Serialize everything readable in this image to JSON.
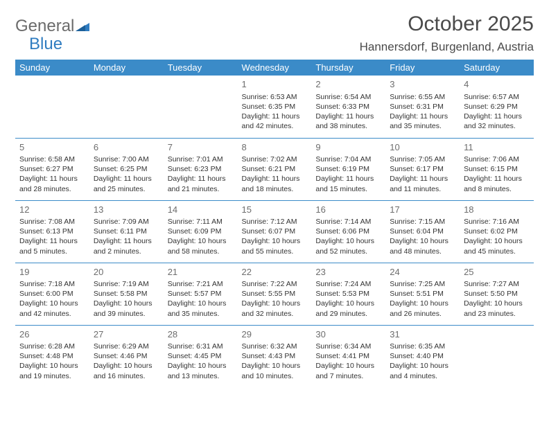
{
  "logo": {
    "text1": "General",
    "text2": "Blue"
  },
  "title": "October 2025",
  "location": "Hannersdorf, Burgenland, Austria",
  "colors": {
    "header_bg": "#3b8bc8",
    "header_text": "#ffffff",
    "border": "#3b8bc8",
    "body_text": "#333333",
    "daynum": "#6d6d6d",
    "logo_gray": "#6b6b6b",
    "logo_blue": "#2f7cc0"
  },
  "day_headers": [
    "Sunday",
    "Monday",
    "Tuesday",
    "Wednesday",
    "Thursday",
    "Friday",
    "Saturday"
  ],
  "weeks": [
    [
      {
        "num": "",
        "lines": []
      },
      {
        "num": "",
        "lines": []
      },
      {
        "num": "",
        "lines": []
      },
      {
        "num": "1",
        "lines": [
          "Sunrise: 6:53 AM",
          "Sunset: 6:35 PM",
          "Daylight: 11 hours and 42 minutes."
        ]
      },
      {
        "num": "2",
        "lines": [
          "Sunrise: 6:54 AM",
          "Sunset: 6:33 PM",
          "Daylight: 11 hours and 38 minutes."
        ]
      },
      {
        "num": "3",
        "lines": [
          "Sunrise: 6:55 AM",
          "Sunset: 6:31 PM",
          "Daylight: 11 hours and 35 minutes."
        ]
      },
      {
        "num": "4",
        "lines": [
          "Sunrise: 6:57 AM",
          "Sunset: 6:29 PM",
          "Daylight: 11 hours and 32 minutes."
        ]
      }
    ],
    [
      {
        "num": "5",
        "lines": [
          "Sunrise: 6:58 AM",
          "Sunset: 6:27 PM",
          "Daylight: 11 hours and 28 minutes."
        ]
      },
      {
        "num": "6",
        "lines": [
          "Sunrise: 7:00 AM",
          "Sunset: 6:25 PM",
          "Daylight: 11 hours and 25 minutes."
        ]
      },
      {
        "num": "7",
        "lines": [
          "Sunrise: 7:01 AM",
          "Sunset: 6:23 PM",
          "Daylight: 11 hours and 21 minutes."
        ]
      },
      {
        "num": "8",
        "lines": [
          "Sunrise: 7:02 AM",
          "Sunset: 6:21 PM",
          "Daylight: 11 hours and 18 minutes."
        ]
      },
      {
        "num": "9",
        "lines": [
          "Sunrise: 7:04 AM",
          "Sunset: 6:19 PM",
          "Daylight: 11 hours and 15 minutes."
        ]
      },
      {
        "num": "10",
        "lines": [
          "Sunrise: 7:05 AM",
          "Sunset: 6:17 PM",
          "Daylight: 11 hours and 11 minutes."
        ]
      },
      {
        "num": "11",
        "lines": [
          "Sunrise: 7:06 AM",
          "Sunset: 6:15 PM",
          "Daylight: 11 hours and 8 minutes."
        ]
      }
    ],
    [
      {
        "num": "12",
        "lines": [
          "Sunrise: 7:08 AM",
          "Sunset: 6:13 PM",
          "Daylight: 11 hours and 5 minutes."
        ]
      },
      {
        "num": "13",
        "lines": [
          "Sunrise: 7:09 AM",
          "Sunset: 6:11 PM",
          "Daylight: 11 hours and 2 minutes."
        ]
      },
      {
        "num": "14",
        "lines": [
          "Sunrise: 7:11 AM",
          "Sunset: 6:09 PM",
          "Daylight: 10 hours and 58 minutes."
        ]
      },
      {
        "num": "15",
        "lines": [
          "Sunrise: 7:12 AM",
          "Sunset: 6:07 PM",
          "Daylight: 10 hours and 55 minutes."
        ]
      },
      {
        "num": "16",
        "lines": [
          "Sunrise: 7:14 AM",
          "Sunset: 6:06 PM",
          "Daylight: 10 hours and 52 minutes."
        ]
      },
      {
        "num": "17",
        "lines": [
          "Sunrise: 7:15 AM",
          "Sunset: 6:04 PM",
          "Daylight: 10 hours and 48 minutes."
        ]
      },
      {
        "num": "18",
        "lines": [
          "Sunrise: 7:16 AM",
          "Sunset: 6:02 PM",
          "Daylight: 10 hours and 45 minutes."
        ]
      }
    ],
    [
      {
        "num": "19",
        "lines": [
          "Sunrise: 7:18 AM",
          "Sunset: 6:00 PM",
          "Daylight: 10 hours and 42 minutes."
        ]
      },
      {
        "num": "20",
        "lines": [
          "Sunrise: 7:19 AM",
          "Sunset: 5:58 PM",
          "Daylight: 10 hours and 39 minutes."
        ]
      },
      {
        "num": "21",
        "lines": [
          "Sunrise: 7:21 AM",
          "Sunset: 5:57 PM",
          "Daylight: 10 hours and 35 minutes."
        ]
      },
      {
        "num": "22",
        "lines": [
          "Sunrise: 7:22 AM",
          "Sunset: 5:55 PM",
          "Daylight: 10 hours and 32 minutes."
        ]
      },
      {
        "num": "23",
        "lines": [
          "Sunrise: 7:24 AM",
          "Sunset: 5:53 PM",
          "Daylight: 10 hours and 29 minutes."
        ]
      },
      {
        "num": "24",
        "lines": [
          "Sunrise: 7:25 AM",
          "Sunset: 5:51 PM",
          "Daylight: 10 hours and 26 minutes."
        ]
      },
      {
        "num": "25",
        "lines": [
          "Sunrise: 7:27 AM",
          "Sunset: 5:50 PM",
          "Daylight: 10 hours and 23 minutes."
        ]
      }
    ],
    [
      {
        "num": "26",
        "lines": [
          "Sunrise: 6:28 AM",
          "Sunset: 4:48 PM",
          "Daylight: 10 hours and 19 minutes."
        ]
      },
      {
        "num": "27",
        "lines": [
          "Sunrise: 6:29 AM",
          "Sunset: 4:46 PM",
          "Daylight: 10 hours and 16 minutes."
        ]
      },
      {
        "num": "28",
        "lines": [
          "Sunrise: 6:31 AM",
          "Sunset: 4:45 PM",
          "Daylight: 10 hours and 13 minutes."
        ]
      },
      {
        "num": "29",
        "lines": [
          "Sunrise: 6:32 AM",
          "Sunset: 4:43 PM",
          "Daylight: 10 hours and 10 minutes."
        ]
      },
      {
        "num": "30",
        "lines": [
          "Sunrise: 6:34 AM",
          "Sunset: 4:41 PM",
          "Daylight: 10 hours and 7 minutes."
        ]
      },
      {
        "num": "31",
        "lines": [
          "Sunrise: 6:35 AM",
          "Sunset: 4:40 PM",
          "Daylight: 10 hours and 4 minutes."
        ]
      },
      {
        "num": "",
        "lines": []
      }
    ]
  ]
}
